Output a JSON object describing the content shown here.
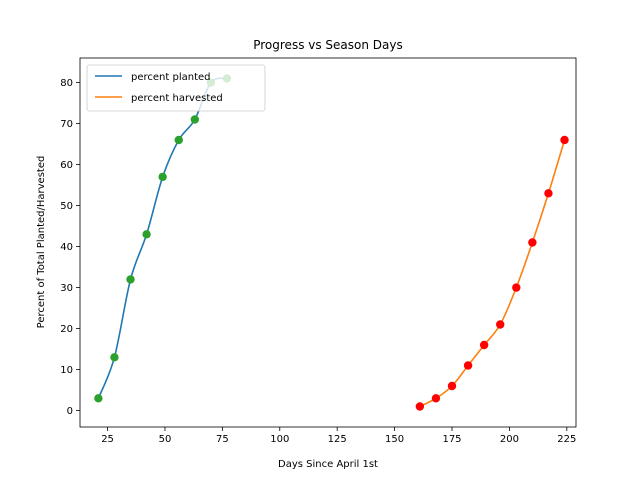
{
  "chart_data": {
    "type": "line",
    "title": "Progress vs Season Days",
    "xlabel": "Days Since April 1st",
    "ylabel": "Percent of Total Planted/Harvested",
    "xlim": [
      13,
      229
    ],
    "ylim": [
      -4,
      86
    ],
    "xticks": [
      25,
      50,
      75,
      100,
      125,
      150,
      175,
      200,
      225
    ],
    "yticks": [
      0,
      10,
      20,
      30,
      40,
      50,
      60,
      70,
      80
    ],
    "grid": false,
    "legend_position": "top-left",
    "series": [
      {
        "name": "percent planted",
        "color": "#1f77b4",
        "curve_x": [
          21,
          28,
          35,
          42,
          49,
          56,
          63,
          70,
          77
        ],
        "curve_y": [
          3,
          13,
          32,
          43,
          57,
          66,
          71,
          80,
          81
        ],
        "marker_color": "#2ca02c",
        "points_x": [
          21,
          28,
          35,
          42,
          49,
          56,
          63,
          70,
          77
        ],
        "points_y": [
          3,
          13,
          32,
          43,
          57,
          66,
          71,
          80,
          81
        ]
      },
      {
        "name": "percent harvested",
        "color": "#ff7f0e",
        "curve_x": [
          161,
          168,
          175,
          182,
          189,
          196,
          203,
          210,
          217,
          224
        ],
        "curve_y": [
          1,
          3,
          6,
          11,
          16,
          21,
          30,
          41,
          53,
          66
        ],
        "marker_color": "#ff0000",
        "points_x": [
          161,
          168,
          175,
          182,
          189,
          196,
          203,
          210,
          217,
          224
        ],
        "points_y": [
          1,
          3,
          6,
          11,
          16,
          21,
          30,
          41,
          53,
          66
        ]
      }
    ]
  }
}
